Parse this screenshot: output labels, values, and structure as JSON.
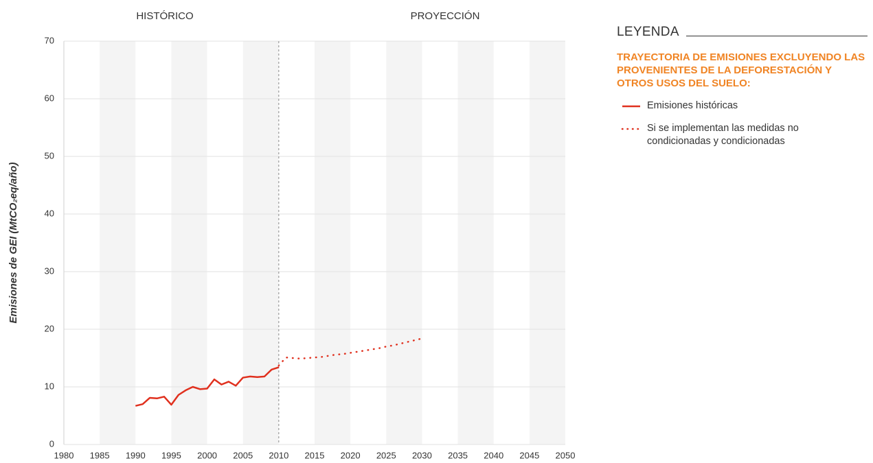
{
  "chart_data": {
    "type": "line",
    "annotations": [
      "HISTÓRICO",
      "PROYECCIÓN"
    ],
    "divider_x": 2010,
    "y_label": "Emisiones de GEI (MtCO₂eq/año)",
    "legend_title": "LEYENDA",
    "legend_subtitle": "TRAYECTORIA DE EMISIONES EXCLUYENDO LAS PROVENIENTES DE LA DEFORESTACIÓN Y OTROS USOS DEL SUELO:",
    "xlim": [
      1980,
      2050
    ],
    "xticks": [
      1980,
      1985,
      1990,
      1995,
      2000,
      2005,
      2010,
      2015,
      2020,
      2025,
      2030,
      2035,
      2040,
      2045,
      2050
    ],
    "ylim": [
      0,
      70
    ],
    "yticks": [
      0,
      10,
      20,
      30,
      40,
      50,
      60,
      70
    ],
    "grid": true,
    "series": [
      {
        "name": "Emisiones históricas",
        "color": "#e0301e",
        "style": "solid",
        "x": [
          1990,
          1991,
          1992,
          1993,
          1994,
          1995,
          1996,
          1997,
          1998,
          1999,
          2000,
          2001,
          2002,
          2003,
          2004,
          2005,
          2006,
          2007,
          2008,
          2009,
          2010
        ],
        "values": [
          6.7,
          7.0,
          8.1,
          8.0,
          8.3,
          6.9,
          8.6,
          9.4,
          10.0,
          9.6,
          9.7,
          11.3,
          10.4,
          10.9,
          10.2,
          11.6,
          11.8,
          11.7,
          11.8,
          13.0,
          13.4
        ]
      },
      {
        "name": "Si se implementan las medidas no condicionadas y condicionadas",
        "color": "#e0301e",
        "style": "dotted",
        "x": [
          2010,
          2011,
          2012,
          2013,
          2014,
          2015,
          2016,
          2017,
          2018,
          2019,
          2020,
          2021,
          2022,
          2023,
          2024,
          2025,
          2026,
          2027,
          2028,
          2029,
          2030
        ],
        "values": [
          13.7,
          15.1,
          15.0,
          14.9,
          15.0,
          15.1,
          15.2,
          15.4,
          15.6,
          15.7,
          15.9,
          16.1,
          16.3,
          16.5,
          16.7,
          17.0,
          17.2,
          17.5,
          17.8,
          18.1,
          18.4
        ]
      }
    ]
  }
}
